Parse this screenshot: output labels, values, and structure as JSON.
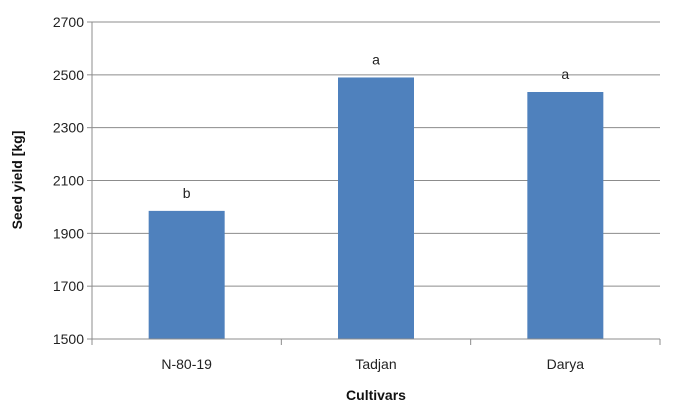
{
  "chart_data": {
    "type": "bar",
    "title": "",
    "xlabel": "Cultivars",
    "ylabel": "Seed yield  [kg]",
    "categories": [
      "N-80-19",
      "Tadjan",
      "Darya"
    ],
    "values": [
      1985,
      2490,
      2435
    ],
    "annotations": [
      "b",
      "a",
      "a"
    ],
    "ylim": [
      1500,
      2700
    ],
    "yticks": [
      1500,
      1700,
      1900,
      2100,
      2300,
      2500,
      2700
    ],
    "grid": true,
    "legend": "none",
    "bar_color": "#4F81BD",
    "grid_color": "#8C8C8C"
  }
}
